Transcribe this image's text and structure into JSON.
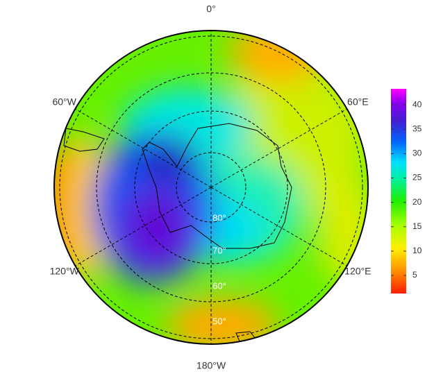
{
  "map": {
    "longitude_labels": [
      "0°",
      "60°E",
      "120°E",
      "180°W",
      "120°W",
      "60°W"
    ],
    "latitude_labels": [
      "80°",
      "70°",
      "60°",
      "50°"
    ],
    "colorbar": {
      "lim": [
        1.3,
        43.3
      ],
      "ticks": [
        5,
        10,
        15,
        20,
        25,
        30,
        35,
        40
      ]
    }
  }
}
